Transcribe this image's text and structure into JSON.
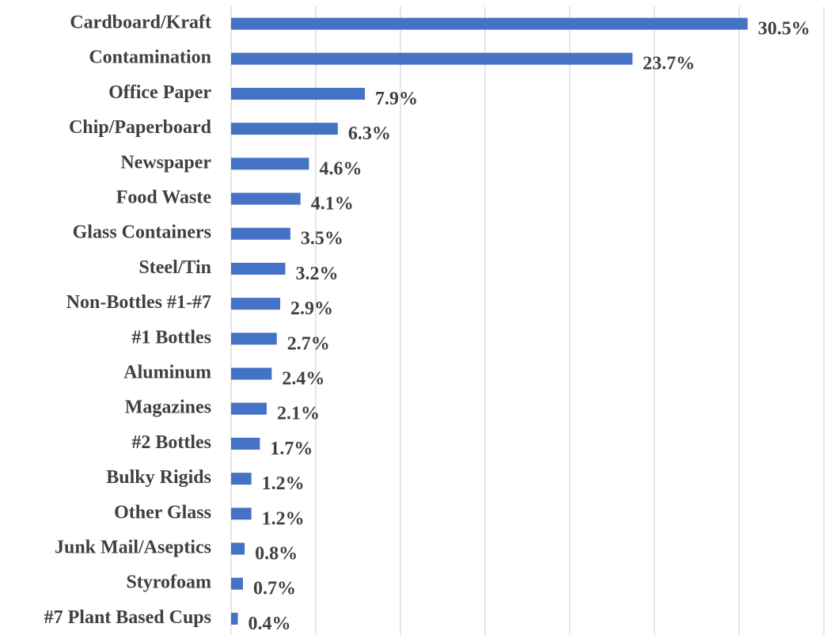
{
  "chart_data": {
    "type": "barh",
    "categories": [
      "Cardboard/Kraft",
      "Contamination",
      "Office Paper",
      "Chip/Paperboard",
      "Newspaper",
      "Food Waste",
      "Glass Containers",
      "Steel/Tin",
      "Non-Bottles #1-#7",
      "#1 Bottles",
      "Aluminum",
      "Magazines",
      "#2 Bottles",
      "Bulky Rigids",
      "Other Glass",
      "Junk Mail/Aseptics",
      "Styrofoam",
      "#7 Plant Based Cups"
    ],
    "values": [
      30.5,
      23.7,
      7.9,
      6.3,
      4.6,
      4.1,
      3.5,
      3.2,
      2.9,
      2.7,
      2.4,
      2.1,
      1.7,
      1.2,
      1.2,
      0.8,
      0.7,
      0.4
    ],
    "value_labels": [
      "30.5%",
      "23.7%",
      "7.9%",
      "6.3%",
      "4.6%",
      "4.1%",
      "3.5%",
      "3.2%",
      "2.9%",
      "2.7%",
      "2.4%",
      "2.1%",
      "1.7%",
      "1.2%",
      "1.2%",
      "0.8%",
      "0.7%",
      "0.4%"
    ],
    "color": "#4472c4",
    "xlim": [
      0,
      35
    ],
    "xticks": [
      0,
      5,
      10,
      15,
      20,
      25,
      30,
      35
    ],
    "grid": true
  }
}
